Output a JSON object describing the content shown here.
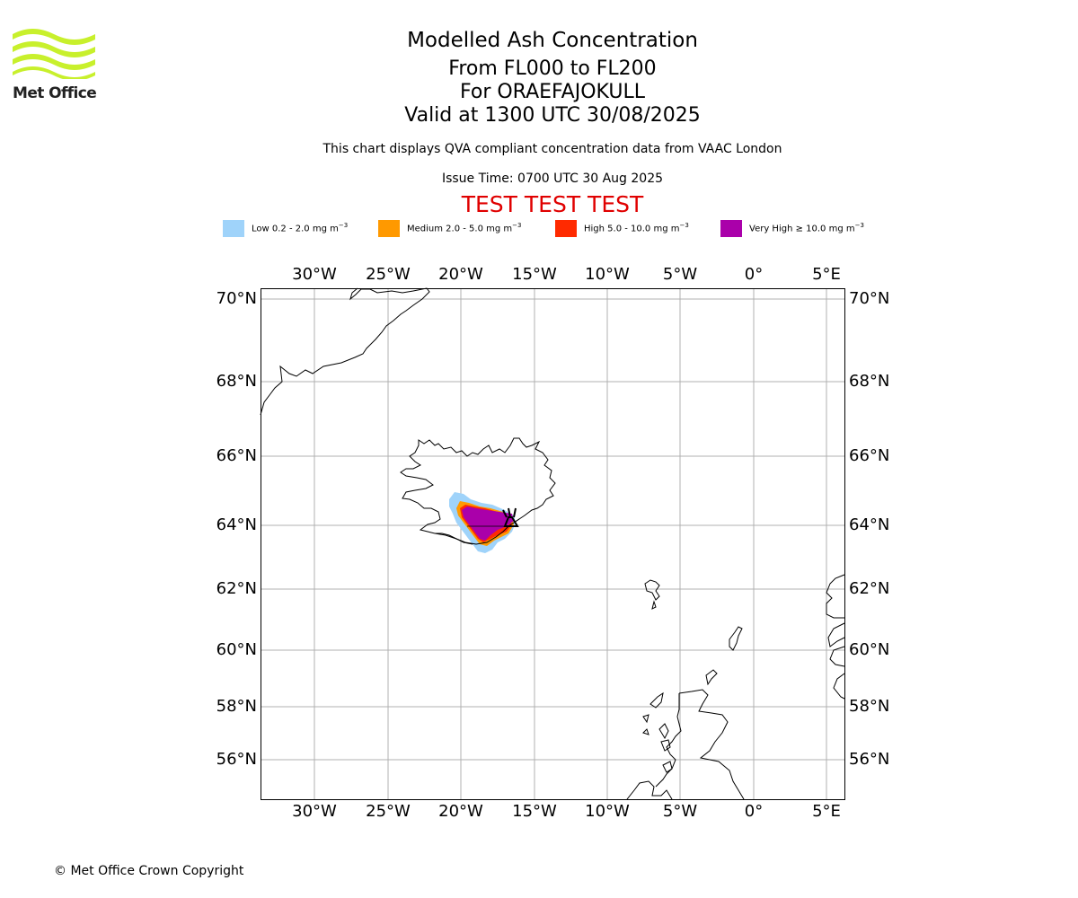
{
  "logo": {
    "name": "Met Office",
    "color": "#c8f02c"
  },
  "header": {
    "title": "Modelled Ash Concentration",
    "levels": "From FL000 to FL200",
    "volcano": "For ORAEFAJOKULL",
    "valid": "Valid at 1300 UTC 30/08/2025",
    "description": "This chart displays QVA compliant concentration data from VAAC London",
    "issue_time": "Issue Time: 0700 UTC 30 Aug 2025",
    "test_banner": "TEST TEST TEST"
  },
  "legend": [
    {
      "label_pre": "Low 0.2 - 2.0 mg m",
      "sup": "−3",
      "color": "#9fd3fa"
    },
    {
      "label_pre": "Medium 2.0 - 5.0 mg m",
      "sup": "−3",
      "color": "#ff9900"
    },
    {
      "label_pre": "High 5.0 - 10.0 mg m",
      "sup": "−3",
      "color": "#ff2a00"
    },
    {
      "label_pre": "Very High  ≥  10.0 mg m",
      "sup": "−3",
      "color": "#aa00aa"
    }
  ],
  "map": {
    "lon_ticks": [
      "30°W",
      "25°W",
      "20°W",
      "15°W",
      "10°W",
      "5°W",
      "0°",
      "5°E"
    ],
    "lat_ticks": [
      "70°N",
      "68°N",
      "66°N",
      "64°N",
      "62°N",
      "60°N",
      "58°N",
      "56°N"
    ],
    "gridlines": true,
    "ash_colors": {
      "low": "#9fd3fa",
      "medium": "#ff9900",
      "high": "#ff2a00",
      "very_high": "#aa00aa"
    }
  },
  "footer": {
    "copyright": "© Met Office Crown Copyright"
  }
}
